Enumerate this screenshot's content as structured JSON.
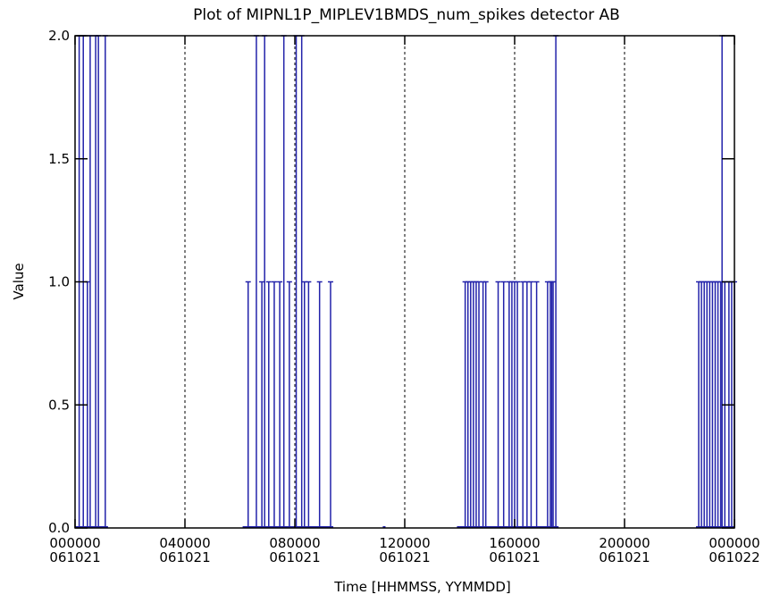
{
  "chart_data": {
    "type": "bar",
    "title": "Plot of MIPNL1P_MIPLEV1BMDS_num_spikes detector AB",
    "xlabel": "Time [HHMMSS, YYMMDD]",
    "ylabel": "Value",
    "xlim": [
      0,
      24
    ],
    "ylim": [
      0,
      2
    ],
    "grid": "vertical-dashed",
    "series_color": "#2222aa",
    "y_ticks": [
      {
        "value": 0.0,
        "label": "0.0"
      },
      {
        "value": 0.5,
        "label": "0.5"
      },
      {
        "value": 1.0,
        "label": "1.0"
      },
      {
        "value": 1.5,
        "label": "1.5"
      },
      {
        "value": 2.0,
        "label": "2.0"
      }
    ],
    "x_ticks": [
      {
        "value": 0,
        "time": "000000",
        "date": "061021"
      },
      {
        "value": 4,
        "time": "040000",
        "date": "061021"
      },
      {
        "value": 8,
        "time": "080000",
        "date": "061021"
      },
      {
        "value": 12,
        "time": "120000",
        "date": "061021"
      },
      {
        "value": 16,
        "time": "160000",
        "date": "061021"
      },
      {
        "value": 20,
        "time": "200000",
        "date": "061021"
      },
      {
        "value": 24,
        "time": "000000",
        "date": "061022"
      }
    ],
    "gridlines_x": [
      4,
      8,
      12,
      16,
      20
    ],
    "points": [
      {
        "x": 0.15,
        "y": 2
      },
      {
        "x": 0.3,
        "y": 2
      },
      {
        "x": 0.45,
        "y": 1
      },
      {
        "x": 0.55,
        "y": 2
      },
      {
        "x": 0.75,
        "y": 2
      },
      {
        "x": 0.85,
        "y": 2
      },
      {
        "x": 1.1,
        "y": 2
      },
      {
        "x": 6.3,
        "y": 1
      },
      {
        "x": 6.6,
        "y": 2
      },
      {
        "x": 6.8,
        "y": 1
      },
      {
        "x": 6.9,
        "y": 2
      },
      {
        "x": 7.05,
        "y": 1
      },
      {
        "x": 7.25,
        "y": 1
      },
      {
        "x": 7.45,
        "y": 1
      },
      {
        "x": 7.6,
        "y": 2
      },
      {
        "x": 7.8,
        "y": 1
      },
      {
        "x": 8.05,
        "y": 2
      },
      {
        "x": 8.25,
        "y": 2
      },
      {
        "x": 8.35,
        "y": 1
      },
      {
        "x": 8.5,
        "y": 1
      },
      {
        "x": 8.9,
        "y": 1
      },
      {
        "x": 9.3,
        "y": 1
      },
      {
        "x": 14.2,
        "y": 1
      },
      {
        "x": 14.3,
        "y": 1
      },
      {
        "x": 14.4,
        "y": 1
      },
      {
        "x": 14.5,
        "y": 1
      },
      {
        "x": 14.6,
        "y": 1
      },
      {
        "x": 14.7,
        "y": 1
      },
      {
        "x": 14.85,
        "y": 1
      },
      {
        "x": 14.95,
        "y": 1
      },
      {
        "x": 15.4,
        "y": 1
      },
      {
        "x": 15.6,
        "y": 1
      },
      {
        "x": 15.8,
        "y": 1
      },
      {
        "x": 15.9,
        "y": 1
      },
      {
        "x": 16.0,
        "y": 1
      },
      {
        "x": 16.1,
        "y": 1
      },
      {
        "x": 16.3,
        "y": 1
      },
      {
        "x": 16.45,
        "y": 1
      },
      {
        "x": 16.6,
        "y": 1
      },
      {
        "x": 16.8,
        "y": 1
      },
      {
        "x": 17.2,
        "y": 1
      },
      {
        "x": 17.3,
        "y": 1
      },
      {
        "x": 17.35,
        "y": 1
      },
      {
        "x": 17.4,
        "y": 1
      },
      {
        "x": 17.5,
        "y": 2
      },
      {
        "x": 22.7,
        "y": 1
      },
      {
        "x": 22.8,
        "y": 1
      },
      {
        "x": 22.9,
        "y": 1
      },
      {
        "x": 23.0,
        "y": 1
      },
      {
        "x": 23.1,
        "y": 1
      },
      {
        "x": 23.2,
        "y": 1
      },
      {
        "x": 23.3,
        "y": 1
      },
      {
        "x": 23.4,
        "y": 1
      },
      {
        "x": 23.5,
        "y": 1
      },
      {
        "x": 23.55,
        "y": 2
      },
      {
        "x": 23.65,
        "y": 1
      },
      {
        "x": 23.8,
        "y": 1
      },
      {
        "x": 23.9,
        "y": 1
      },
      {
        "x": 24.0,
        "y": 1
      }
    ],
    "zero_segments": [
      [
        0.0,
        1.2
      ],
      [
        6.1,
        9.4
      ],
      [
        11.2,
        11.3
      ],
      [
        13.9,
        17.6
      ],
      [
        22.6,
        24.0
      ]
    ]
  }
}
